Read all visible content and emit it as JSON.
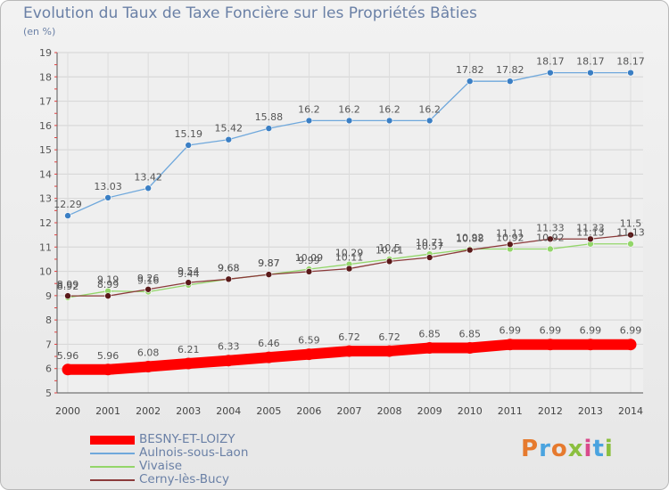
{
  "header": {
    "title": "Evolution du Taux de Taxe Foncière sur les Propriétés Bâties",
    "subtitle": "(en %)"
  },
  "logo": {
    "text": "Proxiti",
    "colors": [
      "#e67a2e",
      "#4aa3df",
      "#e67a2e",
      "#8bbf3f",
      "#d94a8c",
      "#4aa3df",
      "#8bbf3f"
    ]
  },
  "chart_data": {
    "type": "line",
    "x": [
      2000,
      2001,
      2002,
      2003,
      2004,
      2005,
      2006,
      2007,
      2008,
      2009,
      2010,
      2011,
      2012,
      2013,
      2014
    ],
    "ylim": [
      5,
      19
    ],
    "yticks": [
      5,
      6,
      7,
      8,
      9,
      10,
      11,
      12,
      13,
      14,
      15,
      16,
      17,
      18,
      19
    ],
    "grid": true,
    "legend_position": "bottom-left",
    "series": [
      {
        "name": "BESNY-ET-LOIZY",
        "color": "#ff0000",
        "values": [
          5.96,
          5.96,
          6.08,
          6.21,
          6.33,
          6.46,
          6.59,
          6.72,
          6.72,
          6.85,
          6.85,
          6.99,
          6.99,
          6.99,
          6.99
        ],
        "labels": [
          "5.96",
          "5.96",
          "6.08",
          "6.21",
          "6.33",
          "6.46",
          "6.59",
          "6.72",
          "6.72",
          "6.85",
          "6.85",
          "6.99",
          "6.99",
          "6.99",
          "6.99"
        ]
      },
      {
        "name": "Aulnois-sous-Laon",
        "color": "#6fa8dc",
        "values": [
          12.29,
          13.03,
          13.42,
          15.19,
          15.42,
          15.88,
          16.2,
          16.2,
          16.2,
          16.2,
          17.82,
          17.82,
          18.17,
          18.17,
          18.17
        ],
        "labels": [
          "12.29",
          "13.03",
          "13.42",
          "15.19",
          "15.42",
          "15.88",
          "16.2",
          "16.2",
          "16.2",
          "16.2",
          "17.82",
          "17.82",
          "18.17",
          "18.17",
          "18.17"
        ]
      },
      {
        "name": "Vivaise",
        "color": "#93d66a",
        "values": [
          8.92,
          9.19,
          9.16,
          9.44,
          9.68,
          9.87,
          10.09,
          10.29,
          10.5,
          10.71,
          10.92,
          10.92,
          10.92,
          11.13,
          11.13
        ],
        "labels": [
          "8.92",
          "9.19",
          "9.16",
          "9.44",
          "9.68",
          "9.87",
          "10.09",
          "10.29",
          "10.5",
          "10.71",
          "10.92",
          "10.92",
          "10.92",
          "11.13",
          "11.13"
        ]
      },
      {
        "name": "Cerny-lès-Bucy",
        "color": "#8b3a3a",
        "values": [
          8.99,
          8.99,
          9.26,
          9.54,
          9.68,
          9.87,
          9.99,
          10.11,
          10.41,
          10.57,
          10.88,
          11.11,
          11.33,
          11.33,
          11.5
        ],
        "labels": [
          "8.99",
          "8.99",
          "9.26",
          "9.54",
          "9.68",
          "9.87",
          "9.99",
          "10.11",
          "10.41",
          "10.57",
          "10.88",
          "11.11",
          "11.33",
          "11.33",
          "11.5"
        ]
      }
    ]
  }
}
